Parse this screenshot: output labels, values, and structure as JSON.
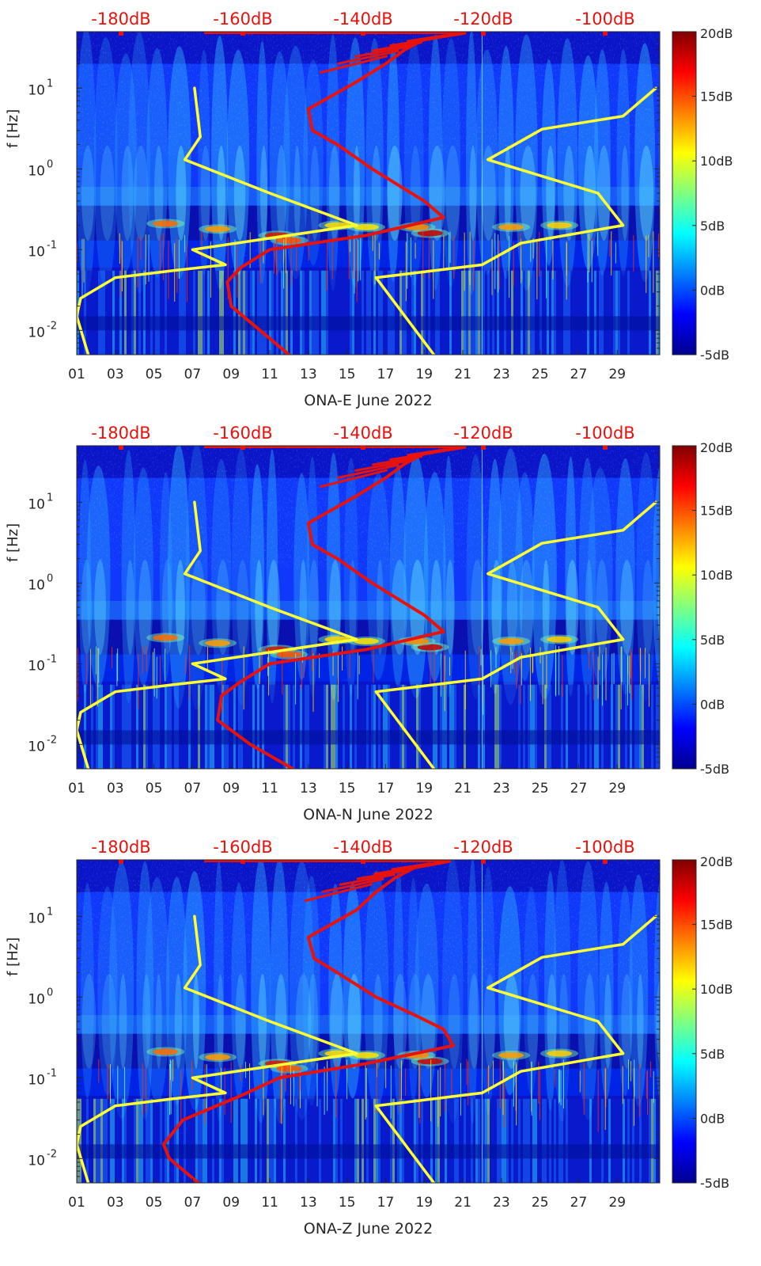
{
  "colorbar_colors": [
    "#00008f",
    "#0000ff",
    "#0080ff",
    "#00ffff",
    "#80ff80",
    "#ffff00",
    "#ff8000",
    "#ff0000",
    "#800000"
  ],
  "line_colors": {
    "yellow": "#ffff33",
    "red": "#e8120c"
  },
  "chart_data": [
    {
      "type": "heatmap",
      "xlabel": "ONA-E June 2022",
      "ylabel": "f [Hz]",
      "x_ticks": [
        "01",
        "03",
        "05",
        "07",
        "09",
        "11",
        "13",
        "15",
        "17",
        "19",
        "21",
        "23",
        "25",
        "27",
        "29"
      ],
      "y_ticks": [
        {
          "label_base": "10",
          "label_exp": "1",
          "value": 10
        },
        {
          "label_base": "10",
          "label_exp": "0",
          "value": 1
        },
        {
          "label_base": "10",
          "label_exp": "-1",
          "value": 0.1
        },
        {
          "label_base": "10",
          "label_exp": "-2",
          "value": 0.01
        }
      ],
      "xlim": [
        1,
        31.2
      ],
      "ylim": [
        0.005,
        50
      ],
      "yscale": "log",
      "top_axis_ticks": [
        "-180dB",
        "-160dB",
        "-140dB",
        "-120dB",
        "-100dB"
      ],
      "colorbar": {
        "ticks": [
          "20dB",
          "15dB",
          "10dB",
          "5dB",
          "0dB",
          "-5dB"
        ],
        "range": [
          -5,
          20
        ]
      },
      "series": [
        {
          "color": "yellow",
          "points": [
            [
              7.1,
              10
            ],
            [
              7.4,
              2.5
            ],
            [
              6.6,
              1.3
            ],
            [
              11,
              0.5
            ],
            [
              15.5,
              0.2
            ],
            [
              7.0,
              0.1
            ],
            [
              8.7,
              0.065
            ],
            [
              6.0,
              0.055
            ],
            [
              3.0,
              0.045
            ],
            [
              1.2,
              0.025
            ],
            [
              1.0,
              0.015
            ],
            [
              1.6,
              0.005
            ]
          ]
        },
        {
          "color": "yellow",
          "points": [
            [
              31,
              10
            ],
            [
              29.3,
              4.5
            ],
            [
              25.1,
              3.1
            ],
            [
              22.3,
              1.3
            ],
            [
              28.0,
              0.5
            ],
            [
              29.3,
              0.2
            ],
            [
              24,
              0.12
            ],
            [
              22,
              0.065
            ],
            [
              16.5,
              0.045
            ],
            [
              19.5,
              0.005
            ]
          ]
        },
        {
          "color": "red",
          "points": [
            [
              21.1,
              48
            ],
            [
              19,
              40
            ],
            [
              18,
              30
            ],
            [
              17,
              20
            ],
            [
              15.5,
              12
            ],
            [
              13,
              5.5
            ],
            [
              13.2,
              3
            ],
            [
              14.5,
              2
            ],
            [
              16.3,
              1
            ],
            [
              17.8,
              0.6
            ],
            [
              19,
              0.4
            ],
            [
              20,
              0.25
            ],
            [
              16,
              0.15
            ],
            [
              11,
              0.1
            ],
            [
              9.5,
              0.06
            ],
            [
              8.8,
              0.04
            ],
            [
              9.0,
              0.02
            ],
            [
              10.5,
              0.01
            ],
            [
              12,
              0.005
            ]
          ]
        }
      ]
    },
    {
      "type": "heatmap",
      "xlabel": "ONA-N June 2022",
      "ylabel": "f [Hz]",
      "x_ticks": [
        "01",
        "03",
        "05",
        "07",
        "09",
        "11",
        "13",
        "15",
        "17",
        "19",
        "21",
        "23",
        "25",
        "27",
        "29"
      ],
      "y_ticks": [
        {
          "label_base": "10",
          "label_exp": "1",
          "value": 10
        },
        {
          "label_base": "10",
          "label_exp": "0",
          "value": 1
        },
        {
          "label_base": "10",
          "label_exp": "-1",
          "value": 0.1
        },
        {
          "label_base": "10",
          "label_exp": "-2",
          "value": 0.01
        }
      ],
      "xlim": [
        1,
        31.2
      ],
      "ylim": [
        0.005,
        50
      ],
      "yscale": "log",
      "top_axis_ticks": [
        "-180dB",
        "-160dB",
        "-140dB",
        "-120dB",
        "-100dB"
      ],
      "colorbar": {
        "ticks": [
          "20dB",
          "15dB",
          "10dB",
          "5dB",
          "0dB",
          "-5dB"
        ],
        "range": [
          -5,
          20
        ]
      },
      "series": [
        {
          "color": "yellow",
          "points": [
            [
              7.1,
              10
            ],
            [
              7.4,
              2.5
            ],
            [
              6.6,
              1.3
            ],
            [
              11,
              0.5
            ],
            [
              15.5,
              0.2
            ],
            [
              7.0,
              0.1
            ],
            [
              8.7,
              0.065
            ],
            [
              6.0,
              0.055
            ],
            [
              3.0,
              0.045
            ],
            [
              1.2,
              0.025
            ],
            [
              1.0,
              0.015
            ],
            [
              1.6,
              0.005
            ]
          ]
        },
        {
          "color": "yellow",
          "points": [
            [
              31,
              10
            ],
            [
              29.3,
              4.5
            ],
            [
              25.1,
              3.1
            ],
            [
              22.3,
              1.3
            ],
            [
              28.0,
              0.5
            ],
            [
              29.3,
              0.2
            ],
            [
              24,
              0.12
            ],
            [
              22,
              0.065
            ],
            [
              16.5,
              0.045
            ],
            [
              19.5,
              0.005
            ]
          ]
        },
        {
          "color": "red",
          "points": [
            [
              21.1,
              48
            ],
            [
              19,
              40
            ],
            [
              18,
              30
            ],
            [
              17,
              20
            ],
            [
              15.5,
              12
            ],
            [
              13,
              5.5
            ],
            [
              13.2,
              3
            ],
            [
              14.5,
              2
            ],
            [
              16.3,
              1
            ],
            [
              17.8,
              0.6
            ],
            [
              19,
              0.4
            ],
            [
              20,
              0.25
            ],
            [
              16,
              0.15
            ],
            [
              11,
              0.1
            ],
            [
              9.5,
              0.06
            ],
            [
              8.5,
              0.04
            ],
            [
              8.3,
              0.02
            ],
            [
              10,
              0.01
            ],
            [
              12.2,
              0.005
            ]
          ]
        }
      ]
    },
    {
      "type": "heatmap",
      "xlabel": "ONA-Z June 2022",
      "ylabel": "f [Hz]",
      "x_ticks": [
        "01",
        "03",
        "05",
        "07",
        "09",
        "11",
        "13",
        "15",
        "17",
        "19",
        "21",
        "23",
        "25",
        "27",
        "29"
      ],
      "y_ticks": [
        {
          "label_base": "10",
          "label_exp": "1",
          "value": 10
        },
        {
          "label_base": "10",
          "label_exp": "0",
          "value": 1
        },
        {
          "label_base": "10",
          "label_exp": "-1",
          "value": 0.1
        },
        {
          "label_base": "10",
          "label_exp": "-2",
          "value": 0.01
        }
      ],
      "xlim": [
        1,
        31.2
      ],
      "ylim": [
        0.005,
        50
      ],
      "yscale": "log",
      "top_axis_ticks": [
        "-180dB",
        "-160dB",
        "-140dB",
        "-120dB",
        "-100dB"
      ],
      "colorbar": {
        "ticks": [
          "20dB",
          "15dB",
          "10dB",
          "5dB",
          "0dB",
          "-5dB"
        ],
        "range": [
          -5,
          20
        ]
      },
      "series": [
        {
          "color": "yellow",
          "points": [
            [
              7.1,
              10
            ],
            [
              7.4,
              2.5
            ],
            [
              6.6,
              1.3
            ],
            [
              11,
              0.5
            ],
            [
              15.5,
              0.2
            ],
            [
              7.0,
              0.1
            ],
            [
              8.7,
              0.065
            ],
            [
              6.0,
              0.055
            ],
            [
              3.0,
              0.045
            ],
            [
              1.2,
              0.025
            ],
            [
              1.0,
              0.015
            ],
            [
              1.6,
              0.005
            ]
          ]
        },
        {
          "color": "yellow",
          "points": [
            [
              31,
              10
            ],
            [
              29.3,
              4.5
            ],
            [
              25.1,
              3.1
            ],
            [
              22.3,
              1.3
            ],
            [
              28.0,
              0.5
            ],
            [
              29.3,
              0.2
            ],
            [
              24,
              0.12
            ],
            [
              22,
              0.065
            ],
            [
              16.5,
              0.045
            ],
            [
              19.5,
              0.005
            ]
          ]
        },
        {
          "color": "red",
          "points": [
            [
              20.3,
              48
            ],
            [
              18.5,
              40
            ],
            [
              17.5,
              30
            ],
            [
              16.5,
              20
            ],
            [
              15.5,
              12
            ],
            [
              13,
              5.5
            ],
            [
              13.3,
              3
            ],
            [
              14.5,
              2
            ],
            [
              16.5,
              1
            ],
            [
              18.5,
              0.6
            ],
            [
              20,
              0.4
            ],
            [
              20.5,
              0.25
            ],
            [
              16,
              0.15
            ],
            [
              11.5,
              0.1
            ],
            [
              9.5,
              0.06
            ],
            [
              6.5,
              0.03
            ],
            [
              5.5,
              0.015
            ],
            [
              5.8,
              0.01
            ],
            [
              7.3,
              0.005
            ]
          ]
        }
      ]
    }
  ]
}
